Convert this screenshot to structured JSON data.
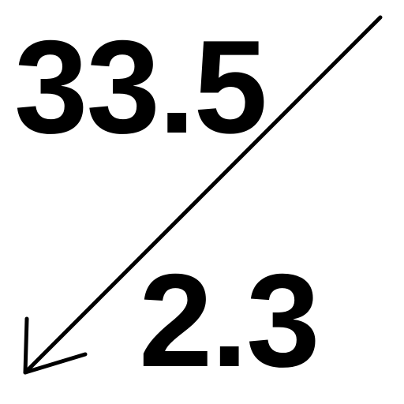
{
  "values": {
    "top": "33.5",
    "bottom": "2.3"
  },
  "colors": {
    "ink": "#000000",
    "background": "#ffffff"
  },
  "icons": {
    "arrow": "arrow-down-left-icon"
  }
}
